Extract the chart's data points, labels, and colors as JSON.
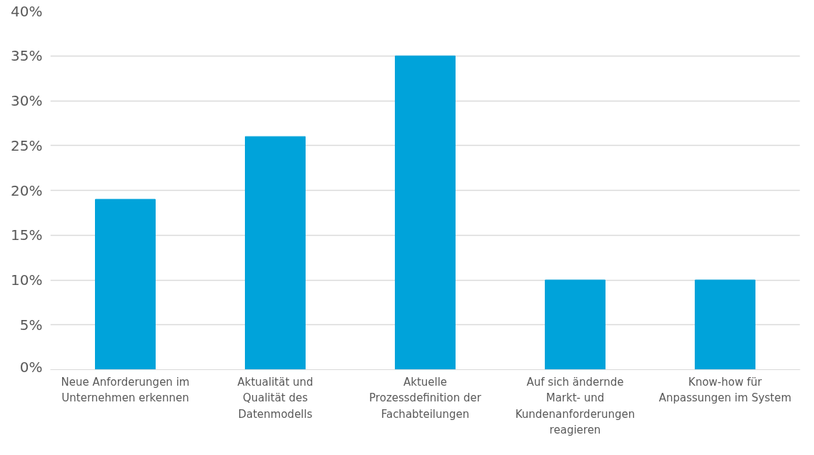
{
  "chart_data": {
    "type": "bar",
    "categories": [
      "Neue Anforderungen im Unternehmen erkennen",
      "Aktualität und Qualität des Datenmodells",
      "Aktuelle Prozessdefinition der Fachabteilungen",
      "Auf sich ändernde Markt- und Kundenanforderungen reagieren",
      "Know-how für Anpassungen im System"
    ],
    "values": [
      19,
      26,
      35,
      10,
      10
    ],
    "color": "#00a3da",
    "ylim": [
      0,
      40
    ],
    "yticks": [
      {
        "value": 0,
        "label": "0%"
      },
      {
        "value": 5,
        "label": "5%"
      },
      {
        "value": 10,
        "label": "10%"
      },
      {
        "value": 15,
        "label": "15%"
      },
      {
        "value": 20,
        "label": "20%"
      },
      {
        "value": 25,
        "label": "25%"
      },
      {
        "value": 30,
        "label": "30%"
      },
      {
        "value": 35,
        "label": "35%"
      },
      {
        "value": 40,
        "label": "40%"
      }
    ],
    "grid": "y"
  }
}
